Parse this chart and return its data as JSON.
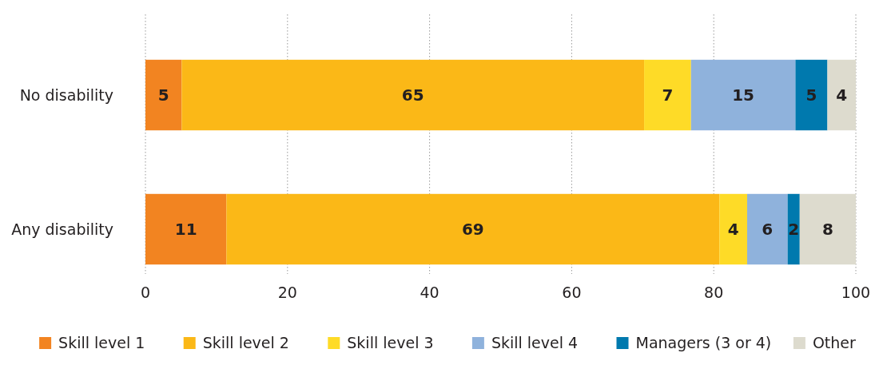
{
  "chart_data": {
    "type": "bar",
    "orientation": "horizontal",
    "stacked": true,
    "categories": [
      "No disability",
      "Any disability"
    ],
    "series": [
      {
        "name": "Skill level 1",
        "color": "#f28421",
        "values": [
          5.1,
          11.4
        ],
        "value_labels": [
          "5",
          "11"
        ]
      },
      {
        "name": "Skill level 2",
        "color": "#fbb817",
        "values": [
          65.1,
          69.4
        ],
        "value_labels": [
          "65",
          "69"
        ]
      },
      {
        "name": "Skill level 3",
        "color": "#fedb27",
        "values": [
          6.6,
          3.9
        ],
        "value_labels": [
          "7",
          "4"
        ]
      },
      {
        "name": "Skill level 4",
        "color": "#8fb2dc",
        "values": [
          14.7,
          5.7
        ],
        "value_labels": [
          "15",
          "6"
        ]
      },
      {
        "name": "Managers (3 or 4)",
        "color": "#0079ae",
        "values": [
          4.5,
          1.7
        ],
        "value_labels": [
          "5",
          "2"
        ]
      },
      {
        "name": "Other",
        "color": "#dddbce",
        "values": [
          4.0,
          7.9
        ],
        "value_labels": [
          "4",
          "8"
        ]
      }
    ],
    "xlim": [
      0,
      100
    ],
    "xticks": [
      0,
      20,
      40,
      60,
      80,
      100
    ],
    "grid": "x",
    "legend": "bottom"
  }
}
